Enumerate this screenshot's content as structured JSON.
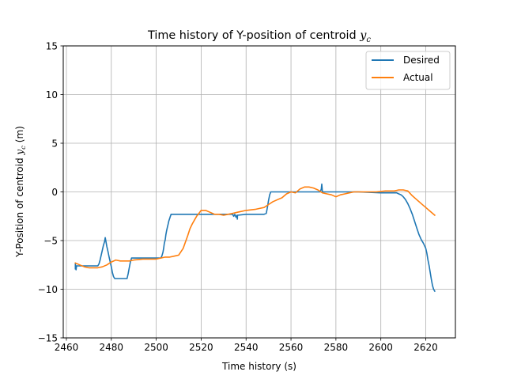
{
  "chart_data": {
    "type": "line",
    "title_main": "Time history of Y-position of centroid ",
    "title_var": "y",
    "title_sub": "c",
    "xlabel": "Time history (s)",
    "ylabel_main": "Y-Position of centroid ",
    "ylabel_var": "y",
    "ylabel_sub": "c",
    "ylabel_unit": " (m)",
    "xlim": [
      2458.6,
      2633.2
    ],
    "ylim": [
      -15,
      15
    ],
    "xticks": [
      2460,
      2480,
      2500,
      2520,
      2540,
      2560,
      2580,
      2600,
      2620
    ],
    "yticks": [
      -15,
      -10,
      -5,
      0,
      5,
      10,
      15
    ],
    "ytick_labels": [
      "−15",
      "−10",
      "−5",
      "0",
      "5",
      "10",
      "15"
    ],
    "grid": true,
    "legend_position": "upper right",
    "series": [
      {
        "name": "Desired",
        "color": "#1f77b4",
        "x": [
          2464.0,
          2464.0,
          2464.3,
          2464.5,
          2465.0,
          2466.0,
          2468,
          2470,
          2472,
          2474,
          2474.5,
          2475,
          2475.5,
          2476,
          2476.5,
          2477,
          2477.3,
          2477.6,
          2478,
          2478.5,
          2479,
          2479.5,
          2480,
          2480.5,
          2481,
          2481.5,
          2482,
          2484,
          2486,
          2487,
          2487.5,
          2488,
          2488.5,
          2489,
          2490,
          2495,
          2500,
          2502,
          2502.5,
          2503,
          2503.3,
          2503.6,
          2504,
          2504.3,
          2504.6,
          2505,
          2505.3,
          2505.6,
          2506,
          2506.3,
          2506.6,
          2510,
          2520,
          2530,
          2534,
          2534.5,
          2535,
          2535.5,
          2536,
          2536.1,
          2536.2,
          2540,
          2548,
          2549,
          2549.5,
          2550,
          2550.5,
          2551,
          2552,
          2560,
          2570,
          2573,
          2573.5,
          2573.7,
          2574,
          2580,
          2590,
          2600,
          2607,
          2608,
          2609,
          2610,
          2611,
          2612,
          2613,
          2614,
          2615,
          2616,
          2617,
          2618,
          2619,
          2620,
          2620.5,
          2621,
          2621.5,
          2622,
          2622.5,
          2623,
          2623.5,
          2624
        ],
        "y": [
          -7.9,
          -7.4,
          -8.0,
          -7.6,
          -7.6,
          -7.6,
          -7.6,
          -7.6,
          -7.6,
          -7.6,
          -7.4,
          -7.0,
          -6.5,
          -6.0,
          -5.5,
          -5.1,
          -4.7,
          -5.1,
          -5.6,
          -6.1,
          -6.7,
          -7.2,
          -7.7,
          -8.3,
          -8.7,
          -8.9,
          -8.9,
          -8.9,
          -8.9,
          -8.9,
          -8.4,
          -7.8,
          -7.2,
          -6.8,
          -6.8,
          -6.8,
          -6.8,
          -6.8,
          -6.6,
          -6.2,
          -5.8,
          -5.3,
          -4.9,
          -4.4,
          -4.0,
          -3.6,
          -3.3,
          -3.0,
          -2.7,
          -2.5,
          -2.3,
          -2.3,
          -2.3,
          -2.3,
          -2.3,
          -2.5,
          -2.3,
          -2.6,
          -2.4,
          -2.8,
          -2.4,
          -2.3,
          -2.3,
          -2.2,
          -1.6,
          -0.9,
          -0.3,
          0.0,
          0.0,
          0.0,
          0.0,
          0.0,
          0.3,
          0.8,
          0.0,
          0.0,
          0.0,
          -0.1,
          -0.1,
          -0.2,
          -0.3,
          -0.5,
          -0.8,
          -1.2,
          -1.7,
          -2.3,
          -3.0,
          -3.7,
          -4.4,
          -4.9,
          -5.3,
          -5.8,
          -6.3,
          -7.0,
          -7.6,
          -8.3,
          -9.0,
          -9.6,
          -10.0,
          -10.2
        ]
      },
      {
        "name": "Actual",
        "color": "#ff7f0e",
        "x": [
          2464.0,
          2466,
          2468,
          2470,
          2472,
          2474,
          2476,
          2478,
          2480,
          2482,
          2484,
          2486,
          2488,
          2490,
          2494,
          2498,
          2500,
          2502,
          2504,
          2506,
          2508,
          2510,
          2512,
          2514,
          2515,
          2516,
          2517,
          2518,
          2519,
          2520,
          2522,
          2524,
          2526,
          2528,
          2530,
          2532,
          2534,
          2536,
          2540,
          2544,
          2546,
          2548,
          2550,
          2552,
          2554,
          2556,
          2558,
          2560,
          2562,
          2564,
          2566,
          2568,
          2570,
          2572,
          2574,
          2576,
          2578,
          2580,
          2582,
          2584,
          2586,
          2588,
          2590,
          2594,
          2598,
          2602,
          2606,
          2608,
          2610,
          2612,
          2614,
          2616,
          2618,
          2620,
          2622,
          2624
        ],
        "y": [
          -7.3,
          -7.5,
          -7.7,
          -7.8,
          -7.8,
          -7.8,
          -7.7,
          -7.5,
          -7.2,
          -7.0,
          -7.1,
          -7.1,
          -7.1,
          -7.0,
          -6.9,
          -6.9,
          -6.9,
          -6.8,
          -6.7,
          -6.7,
          -6.6,
          -6.5,
          -5.8,
          -4.5,
          -3.8,
          -3.3,
          -2.9,
          -2.5,
          -2.2,
          -1.9,
          -1.9,
          -2.1,
          -2.3,
          -2.3,
          -2.4,
          -2.3,
          -2.2,
          -2.1,
          -1.9,
          -1.8,
          -1.7,
          -1.6,
          -1.3,
          -1.0,
          -0.8,
          -0.6,
          -0.2,
          0.0,
          -0.1,
          0.3,
          0.5,
          0.5,
          0.4,
          0.2,
          -0.1,
          -0.2,
          -0.3,
          -0.5,
          -0.3,
          -0.2,
          -0.1,
          0.0,
          0.0,
          0.0,
          0.0,
          0.1,
          0.1,
          0.2,
          0.2,
          0.1,
          -0.4,
          -0.8,
          -1.2,
          -1.6,
          -2.0,
          -2.4
        ]
      }
    ]
  }
}
